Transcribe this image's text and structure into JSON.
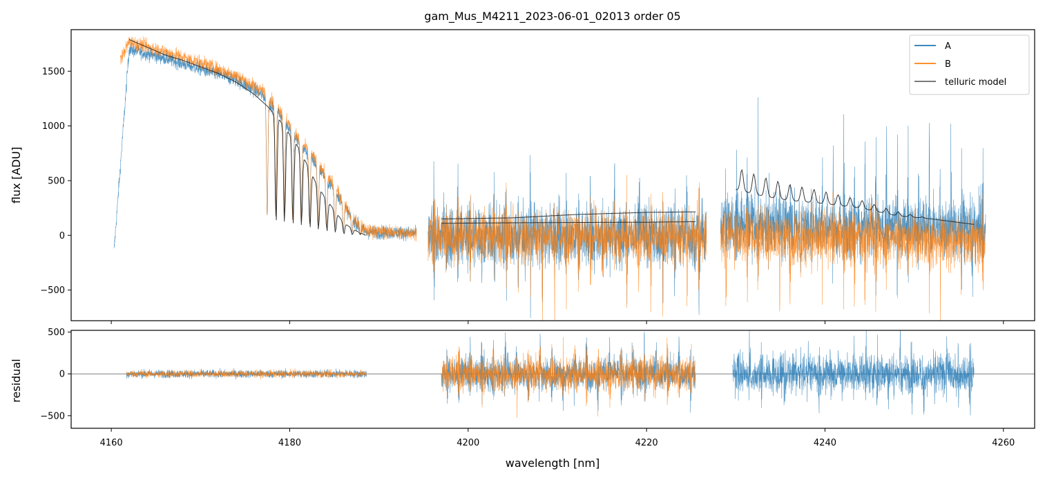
{
  "chart_data": [
    {
      "type": "line",
      "title": "gam_Mus_M4211_2023-06-01_02013  order 05",
      "xlabel": "",
      "ylabel": "flux [ADU]",
      "xlim": [
        4155.5,
        4263.5
      ],
      "ylim": [
        -780,
        1880
      ],
      "yticks": [
        -500,
        0,
        500,
        1000,
        1500
      ],
      "ytick_labels": [
        "−500",
        "0",
        "500",
        "1000",
        "1500"
      ],
      "xticks": [
        4160,
        4180,
        4200,
        4220,
        4240,
        4260
      ],
      "legend_position": "top-right",
      "grid": false,
      "series": [
        {
          "name": "A",
          "color": "#1f77b4",
          "segments": [
            {
              "x_range": [
                4160.3,
                4194.2
              ],
              "env_x": [
                4160.3,
                4162,
                4166,
                4170,
                4174,
                4177,
                4179,
                4181,
                4183,
                4185,
                4187,
                4188.5,
                4194.2
              ],
              "env_y": [
                -150,
                1700,
                1620,
                1520,
                1420,
                1280,
                1100,
                850,
                650,
                420,
                150,
                30,
                20
              ],
              "noise": 45
            },
            {
              "x_range": [
                4195.5,
                4226.7
              ],
              "env_x": [
                4195.5,
                4226.7
              ],
              "env_y": [
                0,
                0
              ],
              "noise": 200,
              "spike_top": [
                380,
                780
              ],
              "spike_bottom": [
                -450,
                -650
              ],
              "spike_spacing": 1.35
            },
            {
              "x_range": [
                4228.3,
                4258.0
              ],
              "env_x": [
                4228.3,
                4258.0
              ],
              "env_y": [
                100,
                50
              ],
              "noise": 200,
              "spike_top": [
                650,
                1150
              ],
              "spike_bottom": [
                -500,
                -700
              ],
              "spike_spacing": 1.2
            }
          ]
        },
        {
          "name": "B",
          "color": "#ff7f0e",
          "segments": [
            {
              "x_range": [
                4161.0,
                4194.2
              ],
              "env_x": [
                4161.0,
                4162,
                4166,
                4170,
                4174,
                4177,
                4179,
                4181,
                4183,
                4185,
                4187,
                4188.5,
                4194.2
              ],
              "env_y": [
                1600,
                1770,
                1680,
                1580,
                1460,
                1320,
                1140,
                880,
                680,
                450,
                170,
                40,
                20
              ],
              "noise": 45
            },
            {
              "x_range": [
                4195.5,
                4226.7
              ],
              "env_x": [
                4195.5,
                4226.7
              ],
              "env_y": [
                0,
                -20
              ],
              "noise": 170,
              "spike_top": [
                250,
                450
              ],
              "spike_bottom": [
                -600,
                -780
              ],
              "spike_spacing": 1.35
            },
            {
              "x_range": [
                4228.3,
                4258.0
              ],
              "env_x": [
                4228.3,
                4258.0
              ],
              "env_y": [
                0,
                -50
              ],
              "noise": 170,
              "spike_top": [
                200,
                420
              ],
              "spike_bottom": [
                -700,
                -800
              ],
              "spike_spacing": 1.2
            }
          ]
        },
        {
          "name": "telluric model",
          "color": "#444444",
          "segments": [
            {
              "x": [
                4162,
                4164,
                4166,
                4168,
                4170,
                4172,
                4174,
                4176,
                4177.5,
                4179,
                4180,
                4181,
                4182,
                4183,
                4184,
                4185,
                4186,
                4187,
                4188.5
              ],
              "y": [
                1790,
                1720,
                1650,
                1600,
                1540,
                1480,
                1400,
                1290,
                1180,
                1040,
                920,
                800,
                640,
                470,
                340,
                230,
                120,
                60,
                0
              ]
            },
            {
              "x": [
                4197,
                4205,
                4212,
                4220,
                4225.5
              ],
              "y": [
                150,
                160,
                190,
                210,
                215
              ]
            },
            {
              "x": [
                4197,
                4205,
                4212,
                4220,
                4225.5
              ],
              "y": [
                110,
                115,
                118,
                120,
                125
              ]
            },
            {
              "x": [
                4230,
                4233,
                4236,
                4240,
                4244,
                4248,
                4252,
                4256.7
              ],
              "y": [
                480,
                420,
                380,
                350,
                310,
                240,
                210,
                160
              ]
            }
          ]
        }
      ]
    },
    {
      "type": "line",
      "title": "",
      "xlabel": "wavelength [nm]",
      "ylabel": "residual",
      "xlim": [
        4155.5,
        4263.5
      ],
      "ylim": [
        -650,
        520
      ],
      "yticks": [
        -500,
        0,
        500
      ],
      "ytick_labels": [
        "−500",
        "0",
        "500"
      ],
      "xticks": [
        4160,
        4180,
        4200,
        4220,
        4240,
        4260
      ],
      "xtick_labels": [
        "4160",
        "4180",
        "4200",
        "4220",
        "4240",
        "4260"
      ],
      "hline": 0,
      "series": [
        {
          "name": "A",
          "color": "#1f77b4",
          "segments": [
            {
              "x_range": [
                4161.7,
                4188.6
              ],
              "noise": 50
            },
            {
              "x_range": [
                4197.0,
                4225.5
              ],
              "noise": 200
            },
            {
              "x_range": [
                4229.6,
                4256.7
              ],
              "noise": 230
            }
          ]
        },
        {
          "name": "B",
          "color": "#ff7f0e",
          "segments": [
            {
              "x_range": [
                4161.7,
                4188.6
              ],
              "noise": 45
            },
            {
              "x_range": [
                4197.0,
                4225.5
              ],
              "noise": 190
            }
          ]
        }
      ]
    }
  ],
  "legend": {
    "items": [
      {
        "label": "A",
        "color": "#1f77b4"
      },
      {
        "label": "B",
        "color": "#ff7f0e"
      },
      {
        "label": "telluric model",
        "color": "#666666"
      }
    ]
  },
  "figure": {
    "title": "gam_Mus_M4211_2023-06-01_02013  order 05",
    "top_ylabel": "flux [ADU]",
    "bottom_ylabel": "residual",
    "xlabel": "wavelength [nm]"
  }
}
